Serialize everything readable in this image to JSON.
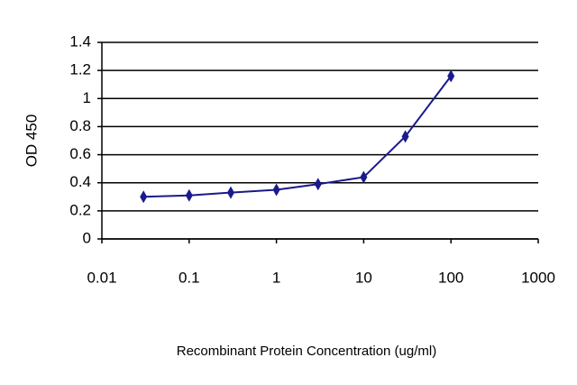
{
  "chart_data": {
    "type": "line",
    "xlabel": "Recombinant Protein Concentration (ug/ml)",
    "ylabel": "OD 450",
    "x": [
      0.03,
      0.1,
      0.3,
      1,
      3,
      10,
      30,
      100
    ],
    "values": [
      0.3,
      0.31,
      0.33,
      0.35,
      0.39,
      0.44,
      0.73,
      1.16
    ],
    "color": "#1a1a8c",
    "xscale": "log",
    "grid": true,
    "xlim": [
      0.01,
      1000
    ],
    "xticks": [
      0.01,
      0.1,
      1,
      10,
      100,
      1000
    ],
    "ylim": [
      0,
      1.4
    ],
    "yticks": [
      0,
      0.2,
      0.4,
      0.6,
      0.8,
      1,
      1.2,
      1.4
    ]
  }
}
